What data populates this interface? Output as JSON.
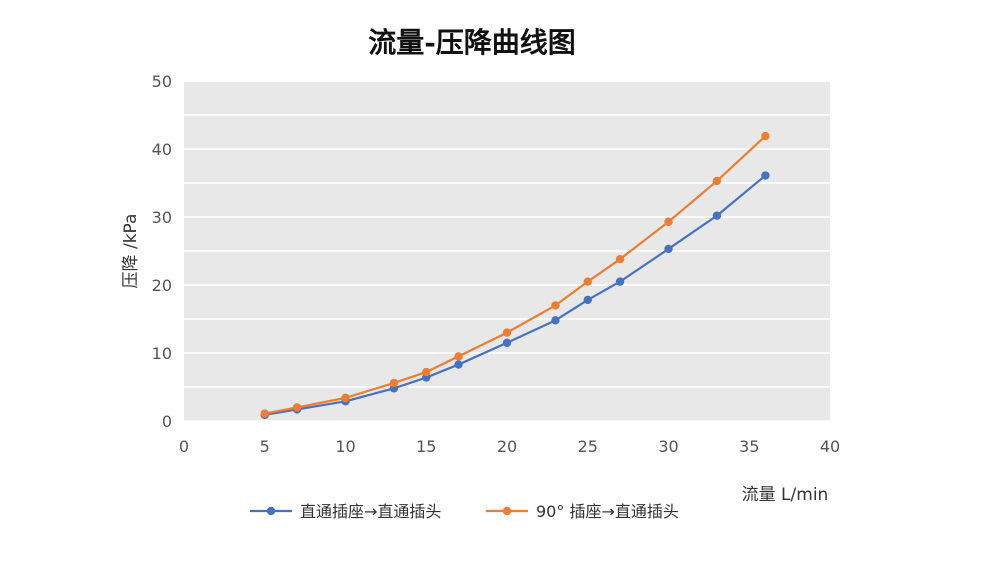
{
  "chart_data": {
    "type": "line",
    "title": "流量-压降曲线图",
    "xlabel": "流量  L/min",
    "ylabel": "压降  /kPa",
    "xlim": [
      0,
      40
    ],
    "ylim": [
      0,
      50
    ],
    "xticks": [
      0,
      5,
      10,
      15,
      20,
      25,
      30,
      35,
      40
    ],
    "yticks": [
      0,
      10,
      20,
      30,
      40,
      50
    ],
    "grid": true,
    "legend": "bottom",
    "series": [
      {
        "name": "直通插座→直通插头",
        "color": "#4472c4",
        "x": [
          5,
          7,
          10,
          13,
          15,
          17,
          20,
          23,
          25,
          27,
          30,
          33,
          36
        ],
        "y": [
          0.9,
          1.7,
          2.9,
          4.8,
          6.4,
          8.3,
          11.5,
          14.8,
          17.8,
          20.5,
          25.3,
          30.2,
          36.1
        ]
      },
      {
        "name": "90° 插座→直通插头",
        "color": "#ed7d31",
        "x": [
          5,
          7,
          10,
          13,
          15,
          17,
          20,
          23,
          25,
          27,
          30,
          33,
          36
        ],
        "y": [
          1.1,
          2.0,
          3.4,
          5.6,
          7.2,
          9.5,
          13.0,
          17.0,
          20.5,
          23.8,
          29.3,
          35.3,
          41.9
        ]
      }
    ]
  }
}
